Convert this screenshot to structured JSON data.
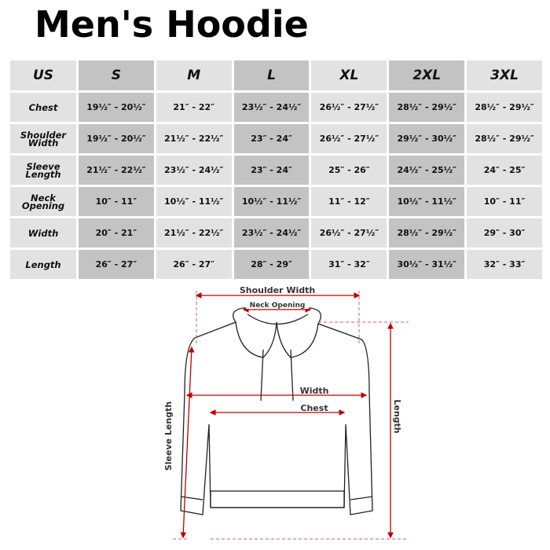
{
  "title": "Men's Hoodie",
  "table": {
    "header": [
      "US",
      "S",
      "M",
      "L",
      "XL",
      "2XL",
      "3XL"
    ],
    "rows": [
      {
        "label": "Chest",
        "values": [
          "19½″ - 20½″",
          "21″ - 22″",
          "23½″ - 24½″",
          "26½″ - 27½″",
          "28½″ - 29½″",
          "28½″ - 29½″"
        ]
      },
      {
        "label": "Shoulder Width",
        "values": [
          "19½″ - 20½″",
          "21½″ - 22½″",
          "23″ - 24″",
          "26½″ - 27½″",
          "29½″ - 30½″",
          "28½″ - 29½″"
        ]
      },
      {
        "label": "Sleeve Length",
        "values": [
          "21½″ - 22½″",
          "23½″ - 24½″",
          "23″ - 24″",
          "25″ - 26″",
          "24½″ - 25½″",
          "24″ - 25″"
        ]
      },
      {
        "label": "Neck Opening",
        "values": [
          "10″ - 11″",
          "10½″ - 11½″",
          "10½″ - 11½″",
          "11″ - 12″",
          "10½″ - 11½″",
          "10″ - 11″"
        ]
      },
      {
        "label": "Width",
        "values": [
          "20″ - 21″",
          "21½″ - 22½″",
          "23½″ - 24½″",
          "26½″ - 27½″",
          "28½″ - 29½″",
          "29″ - 30″"
        ]
      },
      {
        "label": "Length",
        "values": [
          "26″ - 27″",
          "26″ - 27″",
          "28″ - 29″",
          "31″ - 32″",
          "30½″ - 31½″",
          "32″ - 33″"
        ]
      }
    ]
  },
  "diagram": {
    "shoulder_width": "Shoulder Width",
    "neck_opening": "Neck Opening",
    "width": "Width",
    "chest": "Chest",
    "length": "Length",
    "sleeve_length": "Sleeve Length"
  },
  "colors": {
    "measure_line": "#c00000",
    "dash": "#d06060"
  }
}
